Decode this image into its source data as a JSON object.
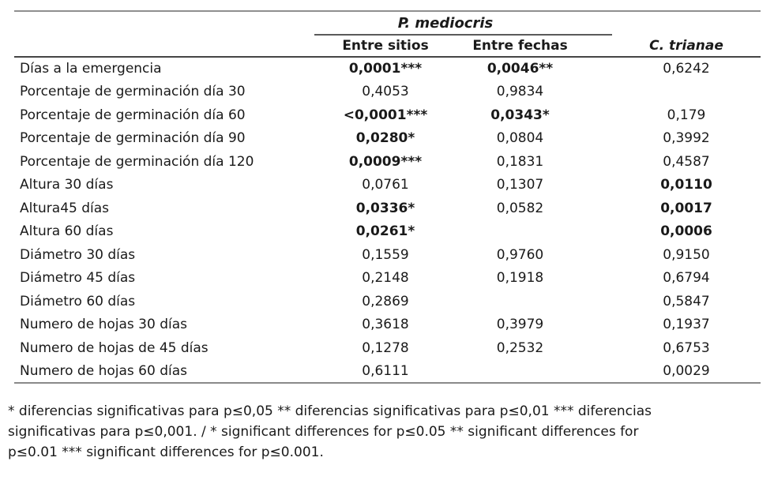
{
  "colors": {
    "text": "#1a1a1a",
    "top_rule": "#8f8f8f",
    "group_rule": "#5a5a5a",
    "header_rule": "#454545",
    "bottom_rule": "#8a8a8a",
    "background": "#ffffff"
  },
  "table": {
    "group_header": "P. mediocris",
    "columns": [
      "",
      "Entre sitios",
      "Entre fechas",
      "C. trianae"
    ],
    "rows": [
      {
        "label": "Días a la emergencia",
        "cells": [
          {
            "text": "0,0001***",
            "bold": true
          },
          {
            "text": "0,0046**",
            "bold": true
          },
          {
            "text": "0,6242",
            "bold": false
          }
        ]
      },
      {
        "label": "Porcentaje de germinación día 30",
        "cells": [
          {
            "text": "0,4053",
            "bold": false
          },
          {
            "text": "0,9834",
            "bold": false
          },
          {
            "text": "",
            "bold": false
          }
        ]
      },
      {
        "label": "Porcentaje de germinación día 60",
        "cells": [
          {
            "text": "<0,0001***",
            "bold": true
          },
          {
            "text": "0,0343*",
            "bold": true
          },
          {
            "text": "0,179",
            "bold": false
          }
        ]
      },
      {
        "label": "Porcentaje de germinación día 90",
        "cells": [
          {
            "text": "0,0280*",
            "bold": true
          },
          {
            "text": "0,0804",
            "bold": false
          },
          {
            "text": "0,3992",
            "bold": false
          }
        ]
      },
      {
        "label": "Porcentaje de germinación día 120",
        "cells": [
          {
            "text": "0,0009***",
            "bold": true
          },
          {
            "text": "0,1831",
            "bold": false
          },
          {
            "text": "0,4587",
            "bold": false
          }
        ]
      },
      {
        "label": "Altura 30 días",
        "cells": [
          {
            "text": "0,0761",
            "bold": false
          },
          {
            "text": "0,1307",
            "bold": false
          },
          {
            "text": "0,0110",
            "bold": true
          }
        ]
      },
      {
        "label": "Altura45 días",
        "cells": [
          {
            "text": "0,0336*",
            "bold": true
          },
          {
            "text": "0,0582",
            "bold": false
          },
          {
            "text": "0,0017",
            "bold": true
          }
        ]
      },
      {
        "label": "Altura 60 días",
        "cells": [
          {
            "text": "0,0261*",
            "bold": true
          },
          {
            "text": "",
            "bold": false
          },
          {
            "text": "0,0006",
            "bold": true
          }
        ]
      },
      {
        "label": "Diámetro 30 días",
        "cells": [
          {
            "text": "0,1559",
            "bold": false
          },
          {
            "text": "0,9760",
            "bold": false
          },
          {
            "text": "0,9150",
            "bold": false
          }
        ]
      },
      {
        "label": "Diámetro 45 días",
        "cells": [
          {
            "text": "0,2148",
            "bold": false
          },
          {
            "text": "0,1918",
            "bold": false
          },
          {
            "text": "0,6794",
            "bold": false
          }
        ]
      },
      {
        "label": "Diámetro 60 días",
        "cells": [
          {
            "text": "0,2869",
            "bold": false
          },
          {
            "text": "",
            "bold": false
          },
          {
            "text": "0,5847",
            "bold": false
          }
        ]
      },
      {
        "label": "Numero de hojas 30 días",
        "cells": [
          {
            "text": "0,3618",
            "bold": false
          },
          {
            "text": "0,3979",
            "bold": false
          },
          {
            "text": "0,1937",
            "bold": false
          }
        ]
      },
      {
        "label": "Numero de hojas de 45 días",
        "cells": [
          {
            "text": "0,1278",
            "bold": false
          },
          {
            "text": "0,2532",
            "bold": false
          },
          {
            "text": "0,6753",
            "bold": false
          }
        ]
      },
      {
        "label": "Numero de hojas 60 días",
        "cells": [
          {
            "text": "0,6111",
            "bold": false
          },
          {
            "text": "",
            "bold": false
          },
          {
            "text": "0,0029",
            "bold": false
          }
        ]
      }
    ]
  },
  "footnote": {
    "lines": [
      "* diferencias significativas para p≤0,05 ** diferencias significativas para p≤0,01 *** diferencias",
      "significativas para p≤0,001. / * significant differences for p≤0.05 ** significant differences for",
      "p≤0.01 *** significant differences for p≤0.001."
    ]
  }
}
